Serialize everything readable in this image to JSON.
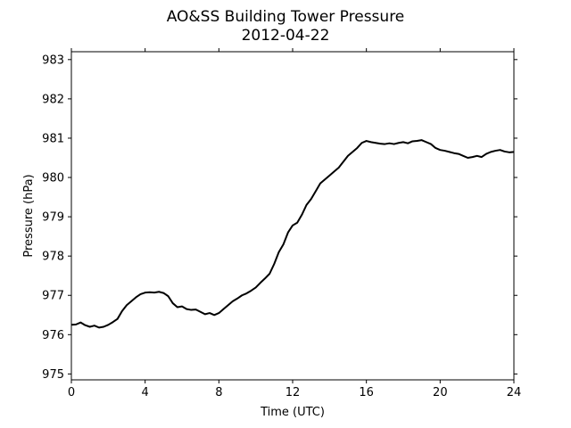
{
  "chart_data": {
    "type": "line",
    "title": "AO&SS Building Tower Pressure",
    "subtitle": "2012-04-22",
    "xlabel": "Time (UTC)",
    "ylabel": "Pressure (hPa)",
    "xlim": [
      0,
      24
    ],
    "ylim": [
      974.85,
      983.2
    ],
    "xticks": [
      0,
      4,
      8,
      12,
      16,
      20,
      24
    ],
    "yticks": [
      975,
      976,
      977,
      978,
      979,
      980,
      981,
      982,
      983
    ],
    "grid": false,
    "series_color": "#000000",
    "series": [
      {
        "x": [
          0,
          0.25,
          0.5,
          0.75,
          1.0,
          1.25,
          1.5,
          1.75,
          2.0,
          2.25,
          2.5,
          2.75,
          3.0,
          3.25,
          3.5,
          3.75,
          4.0,
          4.25,
          4.5,
          4.75,
          5.0,
          5.25,
          5.5,
          5.75,
          6.0,
          6.25,
          6.5,
          6.75,
          7.0,
          7.25,
          7.5,
          7.75,
          8.0,
          8.25,
          8.5,
          8.75,
          9.0,
          9.25,
          9.5,
          9.75,
          10.0,
          10.25,
          10.5,
          10.75,
          11.0,
          11.25,
          11.5,
          11.75,
          12.0,
          12.25,
          12.5,
          12.75,
          13.0,
          13.25,
          13.5,
          13.75,
          14.0,
          14.25,
          14.5,
          14.75,
          15.0,
          15.25,
          15.5,
          15.75,
          16.0,
          16.25,
          16.5,
          16.75,
          17.0,
          17.25,
          17.5,
          17.75,
          18.0,
          18.25,
          18.5,
          18.75,
          19.0,
          19.25,
          19.5,
          19.75,
          20.0,
          20.25,
          20.5,
          20.75,
          21.0,
          21.25,
          21.5,
          21.75,
          22.0,
          22.25,
          22.5,
          22.75,
          23.0,
          23.25,
          23.5,
          23.75,
          24.0
        ],
        "values": [
          976.25,
          976.26,
          976.31,
          976.24,
          976.2,
          976.23,
          976.18,
          976.2,
          976.25,
          976.32,
          976.4,
          976.6,
          976.75,
          976.85,
          976.95,
          977.03,
          977.07,
          977.08,
          977.07,
          977.09,
          977.06,
          976.98,
          976.8,
          976.7,
          976.72,
          976.65,
          976.63,
          976.64,
          976.58,
          976.52,
          976.55,
          976.5,
          976.55,
          976.65,
          976.75,
          976.85,
          976.92,
          977.0,
          977.05,
          977.12,
          977.2,
          977.32,
          977.43,
          977.55,
          977.8,
          978.1,
          978.3,
          978.6,
          978.78,
          978.85,
          979.05,
          979.3,
          979.45,
          979.65,
          979.85,
          979.95,
          980.05,
          980.15,
          980.25,
          980.4,
          980.55,
          980.65,
          980.75,
          980.88,
          980.93,
          980.9,
          980.88,
          980.86,
          980.85,
          980.87,
          980.85,
          980.88,
          980.9,
          980.87,
          980.92,
          980.93,
          980.95,
          980.9,
          980.85,
          980.75,
          980.7,
          980.68,
          980.65,
          980.62,
          980.6,
          980.55,
          980.5,
          980.52,
          980.55,
          980.52,
          980.6,
          980.65,
          980.68,
          980.7,
          980.66,
          980.64,
          980.65
        ]
      }
    ]
  }
}
